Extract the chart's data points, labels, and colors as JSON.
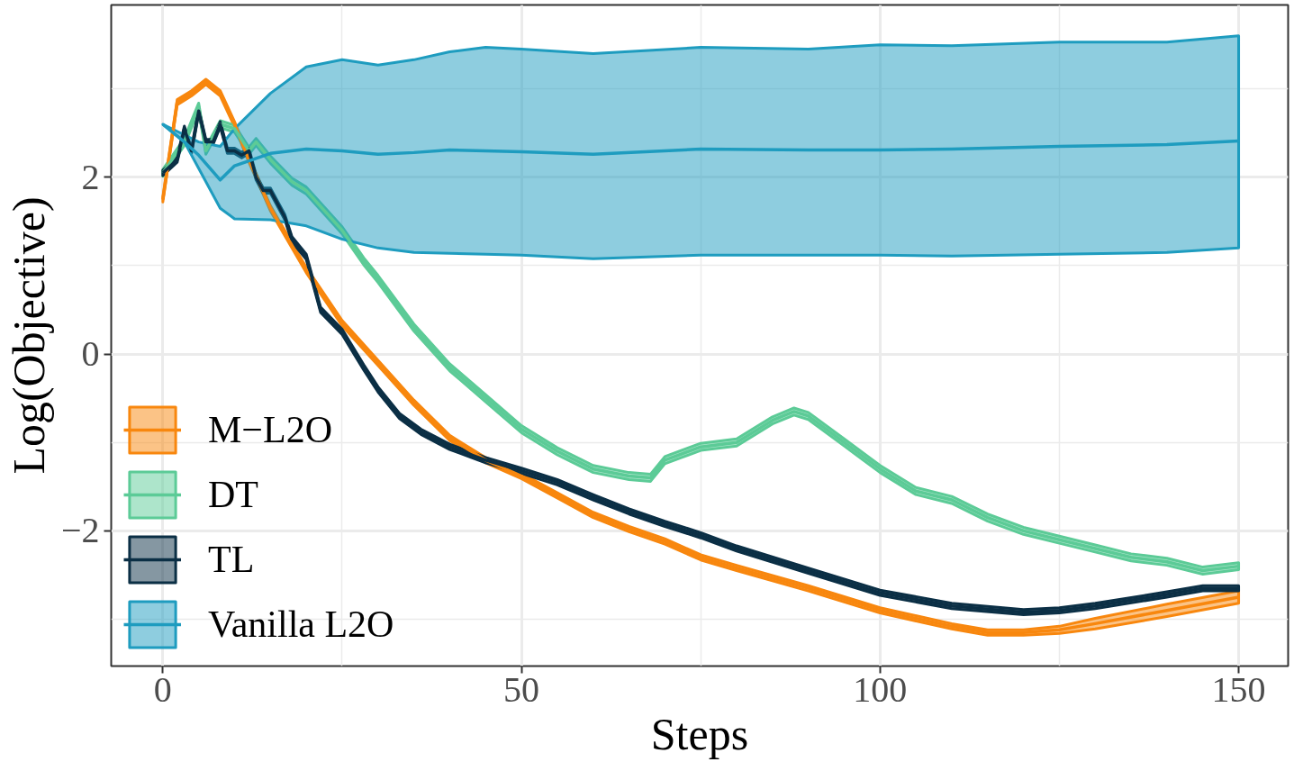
{
  "chart_data": {
    "type": "line",
    "xlabel": "Steps",
    "ylabel": "Log(Objective)",
    "xlim": [
      -7.2,
      156.9
    ],
    "ylim": [
      -3.53,
      3.95
    ],
    "xticks": [
      0,
      50,
      100,
      150
    ],
    "yticks": [
      {
        "value": -2,
        "label": "−2"
      },
      0,
      2
    ],
    "grid": true,
    "legend": "bottom left",
    "line_style": "solid",
    "marker": "none",
    "series": [
      {
        "name": "M−L2O",
        "color": "#f8870e",
        "x": [
          0,
          2,
          4,
          6,
          8,
          10,
          12,
          15,
          20,
          25,
          30,
          35,
          40,
          45,
          50,
          55,
          60,
          65,
          70,
          75,
          80,
          90,
          100,
          110,
          115,
          120,
          125,
          130,
          140,
          150
        ],
        "values": [
          1.75,
          2.85,
          2.95,
          3.08,
          2.95,
          2.6,
          2.2,
          1.65,
          0.95,
          0.35,
          -0.1,
          -0.55,
          -0.95,
          -1.2,
          -1.38,
          -1.6,
          -1.82,
          -1.98,
          -2.12,
          -2.3,
          -2.42,
          -2.65,
          -2.9,
          -3.08,
          -3.15,
          -3.15,
          -3.12,
          -3.05,
          -2.9,
          -2.75
        ],
        "lower": [
          1.72,
          2.82,
          2.92,
          3.05,
          2.92,
          2.57,
          2.17,
          1.62,
          0.92,
          0.32,
          -0.13,
          -0.58,
          -0.98,
          -1.23,
          -1.41,
          -1.63,
          -1.85,
          -2.01,
          -2.15,
          -2.33,
          -2.45,
          -2.68,
          -2.93,
          -3.11,
          -3.18,
          -3.18,
          -3.16,
          -3.11,
          -2.97,
          -2.82
        ],
        "upper": [
          1.78,
          2.88,
          2.98,
          3.11,
          2.98,
          2.63,
          2.23,
          1.68,
          0.98,
          0.38,
          -0.07,
          -0.52,
          -0.92,
          -1.17,
          -1.35,
          -1.57,
          -1.79,
          -1.95,
          -2.09,
          -2.27,
          -2.39,
          -2.62,
          -2.87,
          -3.05,
          -3.12,
          -3.12,
          -3.08,
          -2.99,
          -2.83,
          -2.68
        ]
      },
      {
        "name": "DT",
        "color": "#5ccb97",
        "x": [
          0,
          3,
          5,
          6,
          8,
          10,
          12,
          13,
          15,
          18,
          20,
          25,
          28,
          30,
          35,
          40,
          45,
          50,
          55,
          60,
          65,
          68,
          70,
          75,
          80,
          85,
          88,
          90,
          95,
          100,
          105,
          110,
          115,
          120,
          125,
          130,
          135,
          140,
          145,
          150
        ],
        "values": [
          2.05,
          2.4,
          2.8,
          2.3,
          2.6,
          2.55,
          2.3,
          2.4,
          2.2,
          1.95,
          1.85,
          1.4,
          1.05,
          0.85,
          0.3,
          -0.15,
          -0.5,
          -0.85,
          -1.1,
          -1.3,
          -1.38,
          -1.4,
          -1.2,
          -1.05,
          -1.0,
          -0.75,
          -0.65,
          -0.7,
          -1.0,
          -1.3,
          -1.55,
          -1.65,
          -1.85,
          -2.0,
          -2.1,
          -2.2,
          -2.3,
          -2.35,
          -2.45,
          -2.4
        ],
        "lower": [
          2.01,
          2.36,
          2.76,
          2.26,
          2.56,
          2.51,
          2.26,
          2.36,
          2.16,
          1.91,
          1.81,
          1.36,
          1.01,
          0.81,
          0.26,
          -0.19,
          -0.54,
          -0.89,
          -1.14,
          -1.34,
          -1.42,
          -1.44,
          -1.24,
          -1.09,
          -1.04,
          -0.79,
          -0.69,
          -0.74,
          -1.04,
          -1.34,
          -1.59,
          -1.69,
          -1.89,
          -2.04,
          -2.14,
          -2.24,
          -2.34,
          -2.39,
          -2.49,
          -2.44
        ],
        "upper": [
          2.09,
          2.44,
          2.84,
          2.34,
          2.64,
          2.59,
          2.34,
          2.44,
          2.24,
          1.99,
          1.89,
          1.44,
          1.09,
          0.89,
          0.34,
          -0.11,
          -0.46,
          -0.81,
          -1.06,
          -1.26,
          -1.34,
          -1.36,
          -1.16,
          -1.01,
          -0.96,
          -0.71,
          -0.61,
          -0.66,
          -0.96,
          -1.26,
          -1.51,
          -1.61,
          -1.81,
          -1.96,
          -2.06,
          -2.16,
          -2.26,
          -2.31,
          -2.41,
          -2.36
        ]
      },
      {
        "name": "TL",
        "color": "#0b2f45",
        "x": [
          0,
          2,
          3,
          4,
          5,
          6,
          7,
          8,
          9,
          10,
          11,
          12,
          13,
          14,
          15,
          17,
          18,
          20,
          22,
          25,
          28,
          30,
          33,
          36,
          40,
          45,
          50,
          55,
          60,
          65,
          70,
          75,
          80,
          90,
          100,
          110,
          120,
          125,
          130,
          140,
          145,
          150
        ],
        "values": [
          2.05,
          2.2,
          2.55,
          2.3,
          2.75,
          2.4,
          2.4,
          2.6,
          2.3,
          2.3,
          2.25,
          2.3,
          2.0,
          1.85,
          1.85,
          1.55,
          1.3,
          1.1,
          0.5,
          0.25,
          -0.15,
          -0.4,
          -0.7,
          -0.88,
          -1.05,
          -1.2,
          -1.32,
          -1.45,
          -1.62,
          -1.78,
          -1.92,
          -2.05,
          -2.2,
          -2.45,
          -2.7,
          -2.85,
          -2.92,
          -2.9,
          -2.85,
          -2.72,
          -2.65,
          -2.65
        ],
        "lower": [
          2.02,
          2.17,
          2.52,
          2.27,
          2.72,
          2.37,
          2.37,
          2.57,
          2.27,
          2.27,
          2.22,
          2.27,
          1.97,
          1.82,
          1.82,
          1.52,
          1.27,
          1.07,
          0.47,
          0.22,
          -0.18,
          -0.43,
          -0.73,
          -0.91,
          -1.08,
          -1.23,
          -1.35,
          -1.48,
          -1.65,
          -1.81,
          -1.95,
          -2.08,
          -2.23,
          -2.48,
          -2.73,
          -2.88,
          -2.95,
          -2.93,
          -2.88,
          -2.75,
          -2.68,
          -2.68
        ],
        "upper": [
          2.08,
          2.23,
          2.58,
          2.33,
          2.78,
          2.43,
          2.43,
          2.63,
          2.33,
          2.33,
          2.28,
          2.33,
          2.03,
          1.88,
          1.88,
          1.58,
          1.33,
          1.13,
          0.53,
          0.28,
          -0.12,
          -0.37,
          -0.67,
          -0.85,
          -1.02,
          -1.17,
          -1.29,
          -1.42,
          -1.59,
          -1.75,
          -1.89,
          -2.02,
          -2.17,
          -2.42,
          -2.67,
          -2.82,
          -2.89,
          -2.87,
          -2.82,
          -2.69,
          -2.62,
          -2.62
        ]
      },
      {
        "name": "Vanilla L2O",
        "color": "#1e9cbf",
        "x": [
          0,
          3,
          5,
          8,
          10,
          15,
          20,
          25,
          30,
          35,
          40,
          45,
          50,
          60,
          75,
          90,
          100,
          110,
          125,
          140,
          150
        ],
        "values": [
          2.6,
          2.4,
          2.25,
          1.97,
          2.13,
          2.27,
          2.32,
          2.3,
          2.26,
          2.28,
          2.31,
          2.3,
          2.29,
          2.26,
          2.32,
          2.31,
          2.31,
          2.32,
          2.35,
          2.37,
          2.41
        ],
        "lower": [
          2.6,
          2.4,
          2.1,
          1.65,
          1.53,
          1.52,
          1.45,
          1.3,
          1.2,
          1.15,
          1.14,
          1.13,
          1.12,
          1.08,
          1.12,
          1.12,
          1.12,
          1.11,
          1.13,
          1.15,
          1.2
        ],
        "upper": [
          2.6,
          2.48,
          2.4,
          2.35,
          2.55,
          2.95,
          3.25,
          3.33,
          3.27,
          3.33,
          3.42,
          3.47,
          3.45,
          3.4,
          3.47,
          3.45,
          3.5,
          3.49,
          3.53,
          3.53,
          3.6
        ]
      }
    ]
  }
}
